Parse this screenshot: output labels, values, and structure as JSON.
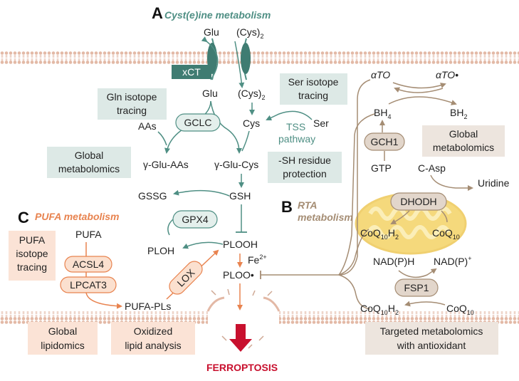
{
  "sections": {
    "a": {
      "letter": "A",
      "title": "Cyst(e)ine metabolism"
    },
    "b": {
      "letter": "B",
      "title_line1": "RTA",
      "title_line2": "metabolism"
    },
    "c": {
      "letter": "C",
      "title": "PUFA metabolism"
    }
  },
  "transporter": {
    "label": "xCT"
  },
  "enzymes": {
    "gclc": "GCLC",
    "gpx4": "GPX4",
    "lox": "LOX",
    "acsl4": "ACSL4",
    "lpcat3": "LPCAT3",
    "gch1": "GCH1",
    "dhodh": "DHODH",
    "fsp1": "FSP1"
  },
  "metabolites": {
    "glu_out": "Glu",
    "cys2_out": "(Cys)",
    "glu_in": "Glu",
    "cys2_in": "(Cys)",
    "sub2": "2",
    "cys": "Cys",
    "ser": "Ser",
    "aas": "AAs",
    "gamma_glu_aas": "γ-Glu-AAs",
    "gamma_glu_cys": "γ-Glu-Cys",
    "gssg": "GSSG",
    "gsh": "GSH",
    "ploh": "PLOH",
    "plooh": "PLOOH",
    "fe": "Fe",
    "fe_sup": "2+",
    "ploo": "PLOO•",
    "pufa": "PUFA",
    "pufa_pls": "PUFA-PLs",
    "ato": "αTO",
    "ato_rad": "αTO•",
    "bh4": "BH",
    "bh4_sub": "4",
    "bh2": "BH",
    "bh2_sub": "2",
    "gtp": "GTP",
    "c_asp": "C-Asp",
    "uridine": "Uridine",
    "coq": "CoQ",
    "coq_sub10": "10",
    "h2": "H",
    "h2_sub": "2",
    "nadph": "NAD(P)H",
    "nadp": "NAD(P)",
    "nadp_sup": "+"
  },
  "tss": {
    "line1": "TSS",
    "line2": "pathway"
  },
  "method_boxes": {
    "gln_tracing": [
      "Gln isotope",
      "tracing"
    ],
    "ser_tracing": [
      "Ser isotope",
      "tracing"
    ],
    "global_metabolomics_a": [
      "Global",
      "metabolomics"
    ],
    "sh_protection": [
      "-SH residue",
      "protection"
    ],
    "global_metabolomics_b": [
      "Global",
      "metabolomics"
    ],
    "pufa_tracing": [
      "PUFA",
      "isotope",
      "tracing"
    ],
    "global_lipidomics": [
      "Global",
      "lipidomics"
    ],
    "oxidized_lipid": [
      "Oxidized",
      "lipid analysis"
    ],
    "targeted_metabolomics": [
      "Targeted metabolomics",
      "with antioxidant"
    ]
  },
  "outcome": "FERROPTOSIS",
  "colors": {
    "teal": "#4f8f84",
    "teal_box": "#dde9e6",
    "enz_teal": "#e4efec",
    "orange": "#e8834f",
    "orange_box": "#fbe3d6",
    "enz_orange": "#fbe0cf",
    "brown": "#a58d74",
    "brown_box": "#ede5de",
    "enz_brown": "#e2d6cb",
    "red": "#c8102e",
    "membrane": "#e3b9a6",
    "mito": "#f5d97c"
  }
}
